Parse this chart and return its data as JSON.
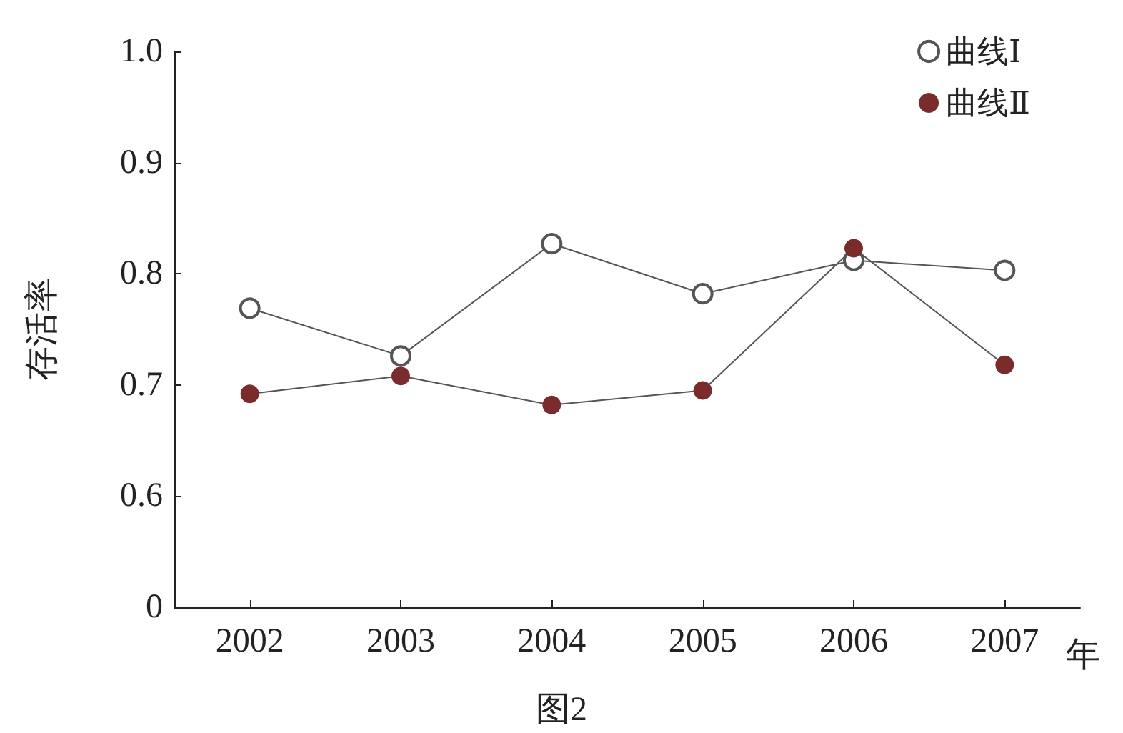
{
  "chart_data": {
    "type": "line",
    "ylabel": "存活率",
    "xlabel": "年",
    "categories": [
      "2002",
      "2003",
      "2004",
      "2005",
      "2006",
      "2007"
    ],
    "series": [
      {
        "name": "曲线Ⅰ",
        "color": "#555555",
        "marker": "circle_open",
        "values": [
          0.769,
          0.726,
          0.827,
          0.782,
          0.812,
          0.803
        ]
      },
      {
        "name": "曲线Ⅱ",
        "color": "#7a2b2b",
        "marker": "circle",
        "values": [
          0.692,
          0.708,
          0.682,
          0.695,
          0.823,
          0.718
        ]
      }
    ],
    "ylim": [
      0.5,
      1.0
    ],
    "yticks": [
      {
        "value": 0.5,
        "label": "0"
      },
      0.6,
      0.7,
      0.8,
      0.9,
      {
        "value": 1.0,
        "label": "1.0"
      }
    ],
    "legend": "top right",
    "grid": false,
    "line_style": "solid",
    "annotations": [
      "图2"
    ]
  }
}
